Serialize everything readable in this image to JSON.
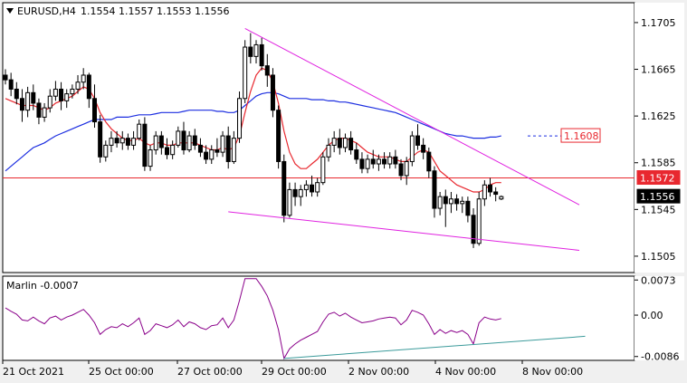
{
  "window": {
    "symbol_label": "EURUSD,H4",
    "ohlc_label": "1.1554 1.1557 1.1553 1.1556",
    "menu_icon": "triangle-down-icon"
  },
  "price_axis": {
    "ticks": [
      "1.1705",
      "1.1665",
      "1.1625",
      "1.1585",
      "1.1545",
      "1.1505"
    ],
    "labels": [
      {
        "text": "1.1608",
        "value": 1.1608,
        "color": "#e8282f",
        "bg": "#ffffff"
      },
      {
        "text": "1.1572",
        "value": 1.1572,
        "color": "#ffffff",
        "bg": "#e8282f"
      },
      {
        "text": "1.1556",
        "value": 1.1556,
        "color": "#ffffff",
        "bg": "#000000"
      }
    ]
  },
  "indicator": {
    "label": "Marlin -0.0007",
    "ticks": [
      "0.0073",
      "0.00",
      "-0.0086"
    ]
  },
  "time_axis": {
    "labels": [
      "21 Oct 2021",
      "25 Oct 00:00",
      "27 Oct 00:00",
      "29 Oct 00:00",
      "2 Nov 00:00",
      "4 Nov 00:00",
      "8 Nov 00:00"
    ]
  },
  "colors": {
    "background": "#ffffff",
    "frame": "#f0f0f0",
    "candle": "#000000",
    "ma_fast": "#e8282f",
    "ma_slow": "#1c2ee0",
    "trendline": "#e022e0",
    "level_line": "#e8282f",
    "oscillator": "#8a008a",
    "osc_trendline": "#3a9a9a"
  },
  "chart_data": {
    "type": "candlestick",
    "title": "EURUSD,H4",
    "price_range": [
      1.1491,
      1.1722
    ],
    "horizontal_level": 1.1572,
    "dashed_level": 1.1608,
    "candles": [
      [
        1.166,
        1.1665,
        1.1652,
        1.1656
      ],
      [
        1.1656,
        1.1662,
        1.1642,
        1.1648
      ],
      [
        1.1648,
        1.1654,
        1.1635,
        1.164
      ],
      [
        1.164,
        1.1648,
        1.162,
        1.163
      ],
      [
        1.163,
        1.165,
        1.1624,
        1.1645
      ],
      [
        1.1645,
        1.1652,
        1.163,
        1.1636
      ],
      [
        1.1636,
        1.164,
        1.1618,
        1.1624
      ],
      [
        1.1624,
        1.1636,
        1.162,
        1.1632
      ],
      [
        1.1632,
        1.1648,
        1.1628,
        1.1642
      ],
      [
        1.1642,
        1.1655,
        1.1638,
        1.1648
      ],
      [
        1.1648,
        1.1654,
        1.163,
        1.1638
      ],
      [
        1.1638,
        1.1648,
        1.1632,
        1.1644
      ],
      [
        1.1644,
        1.1652,
        1.164,
        1.1648
      ],
      [
        1.1648,
        1.166,
        1.1644,
        1.1654
      ],
      [
        1.1654,
        1.1666,
        1.1648,
        1.166
      ],
      [
        1.166,
        1.1662,
        1.1632,
        1.164
      ],
      [
        1.164,
        1.1652,
        1.1615,
        1.162
      ],
      [
        1.162,
        1.1626,
        1.1585,
        1.159
      ],
      [
        1.159,
        1.1604,
        1.1586,
        1.16
      ],
      [
        1.16,
        1.1612,
        1.1594,
        1.1606
      ],
      [
        1.1606,
        1.1612,
        1.1598,
        1.1602
      ],
      [
        1.1602,
        1.1612,
        1.1596,
        1.1606
      ],
      [
        1.1606,
        1.161,
        1.1596,
        1.16
      ],
      [
        1.16,
        1.1612,
        1.1596,
        1.1606
      ],
      [
        1.1606,
        1.1622,
        1.1604,
        1.1618
      ],
      [
        1.1618,
        1.1624,
        1.1578,
        1.1582
      ],
      [
        1.1582,
        1.16,
        1.1578,
        1.1596
      ],
      [
        1.1596,
        1.1612,
        1.1592,
        1.1608
      ],
      [
        1.1608,
        1.1612,
        1.1592,
        1.1598
      ],
      [
        1.1598,
        1.1606,
        1.1588,
        1.1592
      ],
      [
        1.1592,
        1.1604,
        1.1588,
        1.16
      ],
      [
        1.16,
        1.1616,
        1.1598,
        1.1612
      ],
      [
        1.1612,
        1.162,
        1.1592,
        1.1596
      ],
      [
        1.1596,
        1.1612,
        1.1594,
        1.1608
      ],
      [
        1.1608,
        1.1614,
        1.1596,
        1.16
      ],
      [
        1.16,
        1.1606,
        1.159,
        1.1594
      ],
      [
        1.1594,
        1.16,
        1.1584,
        1.1588
      ],
      [
        1.1588,
        1.16,
        1.1584,
        1.1596
      ],
      [
        1.1596,
        1.1606,
        1.159,
        1.1594
      ],
      [
        1.1594,
        1.1612,
        1.159,
        1.1608
      ],
      [
        1.1608,
        1.1616,
        1.158,
        1.1586
      ],
      [
        1.1586,
        1.1612,
        1.1584,
        1.1606
      ],
      [
        1.1606,
        1.1646,
        1.1602,
        1.164
      ],
      [
        1.164,
        1.169,
        1.1636,
        1.1684
      ],
      [
        1.1684,
        1.1696,
        1.167,
        1.1676
      ],
      [
        1.1676,
        1.169,
        1.167,
        1.1686
      ],
      [
        1.1686,
        1.1692,
        1.1664,
        1.1668
      ],
      [
        1.1668,
        1.1678,
        1.165,
        1.166
      ],
      [
        1.166,
        1.1666,
        1.1624,
        1.163
      ],
      [
        1.163,
        1.1634,
        1.158,
        1.1586
      ],
      [
        1.1586,
        1.1592,
        1.1534,
        1.154
      ],
      [
        1.154,
        1.1568,
        1.1538,
        1.1562
      ],
      [
        1.1562,
        1.1568,
        1.1548,
        1.1556
      ],
      [
        1.1556,
        1.1566,
        1.1548,
        1.1562
      ],
      [
        1.1562,
        1.157,
        1.1556,
        1.1566
      ],
      [
        1.1566,
        1.1574,
        1.1556,
        1.156
      ],
      [
        1.156,
        1.1572,
        1.1556,
        1.1568
      ],
      [
        1.1568,
        1.1594,
        1.1566,
        1.159
      ],
      [
        1.159,
        1.1606,
        1.1586,
        1.16
      ],
      [
        1.16,
        1.1612,
        1.1594,
        1.1606
      ],
      [
        1.1606,
        1.1614,
        1.1592,
        1.1598
      ],
      [
        1.1598,
        1.161,
        1.1594,
        1.1606
      ],
      [
        1.1606,
        1.1612,
        1.1592,
        1.1596
      ],
      [
        1.1596,
        1.1602,
        1.1584,
        1.1588
      ],
      [
        1.1588,
        1.1594,
        1.1576,
        1.158
      ],
      [
        1.158,
        1.1592,
        1.1576,
        1.1588
      ],
      [
        1.1588,
        1.1596,
        1.158,
        1.1584
      ],
      [
        1.1584,
        1.1592,
        1.1578,
        1.1588
      ],
      [
        1.1588,
        1.1594,
        1.158,
        1.1584
      ],
      [
        1.1584,
        1.1594,
        1.158,
        1.159
      ],
      [
        1.159,
        1.1596,
        1.158,
        1.1584
      ],
      [
        1.1584,
        1.1588,
        1.157,
        1.1574
      ],
      [
        1.1574,
        1.159,
        1.1566,
        1.1586
      ],
      [
        1.1586,
        1.1612,
        1.1582,
        1.1608
      ],
      [
        1.1608,
        1.1618,
        1.1596,
        1.16
      ],
      [
        1.16,
        1.1606,
        1.1588,
        1.1594
      ],
      [
        1.1594,
        1.1598,
        1.1572,
        1.1578
      ],
      [
        1.1578,
        1.1582,
        1.1538,
        1.1546
      ],
      [
        1.1546,
        1.156,
        1.154,
        1.1556
      ],
      [
        1.1556,
        1.1562,
        1.153,
        1.155
      ],
      [
        1.155,
        1.156,
        1.1542,
        1.1554
      ],
      [
        1.1554,
        1.1558,
        1.1544,
        1.155
      ],
      [
        1.155,
        1.1556,
        1.1542,
        1.1552
      ],
      [
        1.1552,
        1.1556,
        1.1534,
        1.154
      ],
      [
        1.154,
        1.1546,
        1.1512,
        1.1516
      ],
      [
        1.1516,
        1.156,
        1.1514,
        1.1554
      ],
      [
        1.1554,
        1.157,
        1.1548,
        1.1566
      ],
      [
        1.1566,
        1.1572,
        1.1556,
        1.156
      ],
      [
        1.156,
        1.1564,
        1.1552,
        1.1558
      ],
      [
        1.1554,
        1.1557,
        1.1553,
        1.1556
      ]
    ],
    "ma_fast": [
      1.164,
      1.1638,
      1.1636,
      1.1634,
      1.1634,
      1.1634,
      1.1632,
      1.163,
      1.1632,
      1.1636,
      1.1638,
      1.164,
      1.1642,
      1.1646,
      1.165,
      1.1648,
      1.164,
      1.1628,
      1.162,
      1.1614,
      1.161,
      1.1606,
      1.1604,
      1.1604,
      1.1606,
      1.1602,
      1.16,
      1.1602,
      1.1602,
      1.16,
      1.16,
      1.1602,
      1.1602,
      1.1602,
      1.1602,
      1.16,
      1.1598,
      1.1596,
      1.1596,
      1.1598,
      1.1596,
      1.1598,
      1.1608,
      1.1628,
      1.1646,
      1.166,
      1.1666,
      1.1664,
      1.1654,
      1.1636,
      1.1612,
      1.1594,
      1.1584,
      1.158,
      1.158,
      1.1584,
      1.1588,
      1.1594,
      1.16,
      1.1604,
      1.1606,
      1.1606,
      1.1604,
      1.1602,
      1.1598,
      1.1594,
      1.1592,
      1.159,
      1.159,
      1.159,
      1.1588,
      1.1586,
      1.1586,
      1.159,
      1.1594,
      1.1596,
      1.1594,
      1.1586,
      1.1578,
      1.1574,
      1.157,
      1.1566,
      1.1564,
      1.1562,
      1.156,
      1.156,
      1.1562,
      1.1566,
      1.1568,
      1.1568
    ],
    "ma_slow": [
      1.1578,
      1.1582,
      1.1586,
      1.159,
      1.1594,
      1.1598,
      1.16,
      1.1602,
      1.1605,
      1.1608,
      1.161,
      1.1612,
      1.1614,
      1.1616,
      1.1618,
      1.162,
      1.1622,
      1.1622,
      1.1622,
      1.1622,
      1.1624,
      1.1624,
      1.1624,
      1.1625,
      1.1626,
      1.1626,
      1.1626,
      1.1627,
      1.1628,
      1.1628,
      1.1628,
      1.1628,
      1.1629,
      1.163,
      1.163,
      1.163,
      1.163,
      1.163,
      1.1629,
      1.1629,
      1.1628,
      1.1628,
      1.163,
      1.1634,
      1.1638,
      1.1642,
      1.1644,
      1.1645,
      1.1645,
      1.1644,
      1.1642,
      1.164,
      1.164,
      1.164,
      1.164,
      1.1639,
      1.1639,
      1.1639,
      1.1638,
      1.1638,
      1.1637,
      1.1637,
      1.1636,
      1.1635,
      1.1634,
      1.1633,
      1.1632,
      1.1631,
      1.163,
      1.1629,
      1.1628,
      1.1626,
      1.1624,
      1.1622,
      1.162,
      1.1618,
      1.1616,
      1.1614,
      1.1612,
      1.161,
      1.1609,
      1.1608,
      1.1608,
      1.1607,
      1.1606,
      1.1606,
      1.1606,
      1.1607,
      1.1607,
      1.1608
    ],
    "oscillator_range": [
      -0.0094,
      0.0081
    ],
    "oscillator": [
      0.0015,
      0.0008,
      0.0002,
      -0.001,
      -0.0012,
      -0.0004,
      -0.0012,
      -0.0018,
      -0.0006,
      -0.0002,
      -0.001,
      -0.0004,
      0.0,
      0.0006,
      0.0012,
      0.0,
      -0.0016,
      -0.004,
      -0.003,
      -0.0024,
      -0.0026,
      -0.0018,
      -0.0024,
      -0.0016,
      -0.0006,
      -0.004,
      -0.0032,
      -0.0018,
      -0.0022,
      -0.0026,
      -0.002,
      -0.001,
      -0.0024,
      -0.0014,
      -0.0018,
      -0.0026,
      -0.003,
      -0.0022,
      -0.002,
      -0.0006,
      -0.0026,
      -0.001,
      0.003,
      0.0076,
      0.0076,
      0.0076,
      0.006,
      0.004,
      0.001,
      -0.003,
      -0.009,
      -0.007,
      -0.006,
      -0.0052,
      -0.0046,
      -0.004,
      -0.0034,
      -0.0014,
      0.0002,
      0.0006,
      -0.0002,
      0.0004,
      -0.0004,
      -0.001,
      -0.0016,
      -0.0014,
      -0.0012,
      -0.0008,
      -0.0006,
      -0.0004,
      -0.0006,
      -0.002,
      -0.001,
      0.001,
      0.0006,
      0.0,
      -0.0018,
      -0.004,
      -0.003,
      -0.0038,
      -0.0032,
      -0.0036,
      -0.0032,
      -0.004,
      -0.006,
      -0.0016,
      -0.0004,
      -0.0008,
      -0.001,
      -0.0007
    ],
    "trendlines": [
      {
        "from": {
          "index": 43,
          "value": 1.17
        },
        "to": {
          "index": 103,
          "value": 1.1549
        }
      },
      {
        "from": {
          "index": 40,
          "value": 1.1543
        },
        "to": {
          "index": 103,
          "value": 1.151
        }
      }
    ],
    "oscillator_trendline": {
      "from": {
        "index": 50,
        "value": -0.009
      },
      "to": {
        "index": 100,
        "value": -0.0044
      }
    }
  }
}
